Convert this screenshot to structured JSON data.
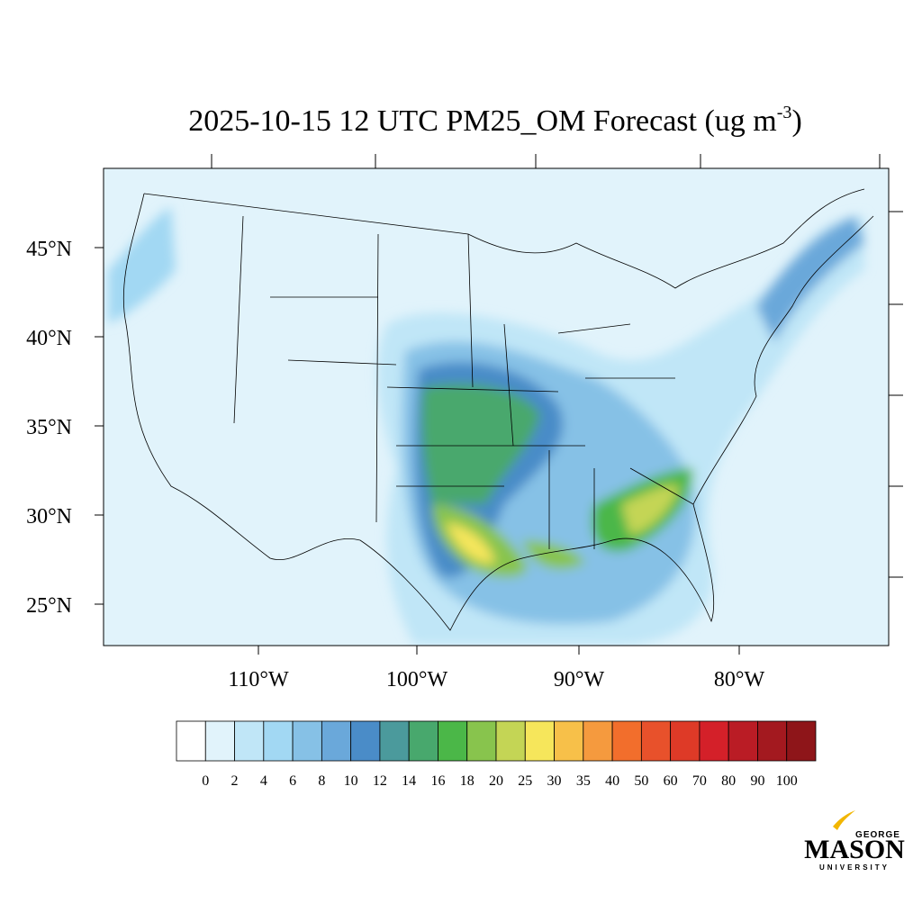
{
  "title": "2025-10-15 12 UTC PM25_OM Forecast (ug m",
  "title_superscript": "-3",
  "title_end": ")",
  "lat_labels": [
    "45°N",
    "40°N",
    "35°N",
    "30°N",
    "25°N"
  ],
  "lon_labels": [
    "110°W",
    "100°W",
    "90°W",
    "80°W"
  ],
  "colorbar": {
    "labels": [
      "0",
      "2",
      "4",
      "6",
      "8",
      "10",
      "12",
      "14",
      "16",
      "18",
      "20",
      "25",
      "30",
      "35",
      "40",
      "50",
      "60",
      "70",
      "80",
      "90",
      "100"
    ],
    "colors": [
      "#ffffff",
      "#e1f3fb",
      "#c0e6f7",
      "#a2d8f3",
      "#86c1e6",
      "#6aa8da",
      "#4a8cc8",
      "#4b9a9c",
      "#48a86d",
      "#4bb748",
      "#88c44d",
      "#c4d555",
      "#f6e65b",
      "#f7c049",
      "#f59a3e",
      "#f26e2c",
      "#e8512b",
      "#de3a27",
      "#d42029",
      "#ba1c25",
      "#a3191f",
      "#8e1519"
    ]
  },
  "logo": {
    "top": "GEORGE",
    "main": "MASON",
    "bottom": "UNIVERSITY"
  }
}
